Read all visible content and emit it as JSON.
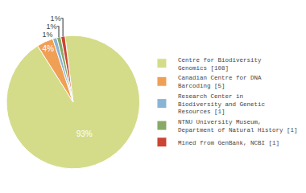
{
  "chart_data": {
    "type": "pie",
    "categories": [
      "Centre for Biodiversity\nGenomics [108]",
      "Canadian Centre for DNA\nBarcoding [5]",
      "Research Center in\nBiodiversity and Genetic\nResources [1]",
      "NTNU University Museum,\nDepartment of Natural History [1]",
      "Mined from GenBank, NCBI [1]"
    ],
    "values": [
      93,
      4,
      1,
      1,
      1
    ],
    "value_labels": [
      "93%",
      "4%",
      "1%",
      "1%",
      "1%"
    ],
    "colors": [
      "#d4dc8a",
      "#f0a055",
      "#8ab4d4",
      "#88aa66",
      "#cc4433"
    ],
    "data_labels": true,
    "legend": "right"
  }
}
